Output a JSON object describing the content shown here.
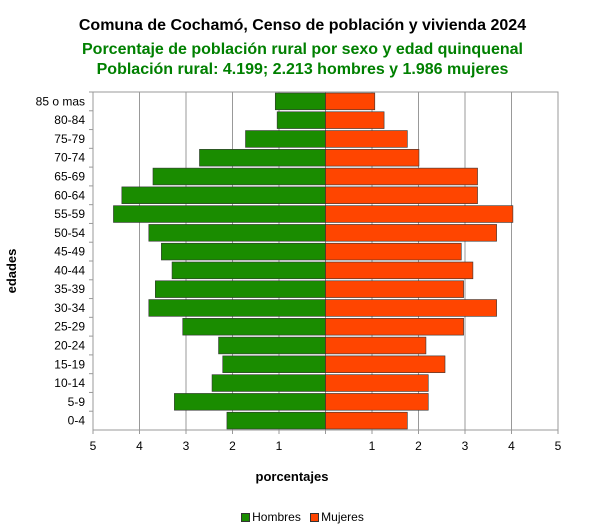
{
  "header": {
    "title": "Comuna de Cochamó, Censo de población y vivienda 2024",
    "subtitle": "Porcentaje de población rural por sexo y edad quinquenal",
    "subtitle2": "Población rural: 4.199; 2.213 hombres y 1.986 mujeres"
  },
  "colors": {
    "hombres": "#1a8c00",
    "mujeres": "#ff4500",
    "grid": "#999999",
    "subtitle": "#008000"
  },
  "chart_data": {
    "type": "bar",
    "orientation": "horizontal-population-pyramid",
    "title": "Comuna de Cochamó, Censo de población y vivienda 2024",
    "subtitle": "Porcentaje de población rural por sexo y edad quinquenal",
    "xlabel": "porcentajes",
    "ylabel": "edades",
    "xlim": [
      -5,
      5
    ],
    "x_ticks": [
      -5,
      -4,
      -3,
      -2,
      -1,
      0,
      1,
      2,
      3,
      4,
      5
    ],
    "x_tick_labels": [
      "5",
      "4",
      "3",
      "2",
      "1",
      "",
      "1",
      "2",
      "3",
      "4",
      "5"
    ],
    "grid": true,
    "legend": "bottom",
    "categories": [
      "85 o mas",
      "80-84",
      "75-79",
      "70-74",
      "65-69",
      "60-64",
      "55-59",
      "50-54",
      "45-49",
      "40-44",
      "35-39",
      "30-34",
      "25-29",
      "20-24",
      "15-19",
      "10-14",
      "5-9",
      "0-4"
    ],
    "series": [
      {
        "name": "Hombres",
        "side": "left",
        "values": [
          1.08,
          1.04,
          1.72,
          2.71,
          3.71,
          4.38,
          4.56,
          3.8,
          3.53,
          3.3,
          3.66,
          3.8,
          3.07,
          2.3,
          2.21,
          2.44,
          3.25,
          2.12
        ]
      },
      {
        "name": "Mujeres",
        "side": "right",
        "values": [
          1.06,
          1.26,
          1.76,
          2.01,
          3.27,
          3.27,
          4.03,
          3.68,
          2.92,
          3.17,
          2.97,
          3.68,
          2.97,
          2.16,
          2.57,
          2.21,
          2.21,
          1.76
        ]
      }
    ]
  }
}
